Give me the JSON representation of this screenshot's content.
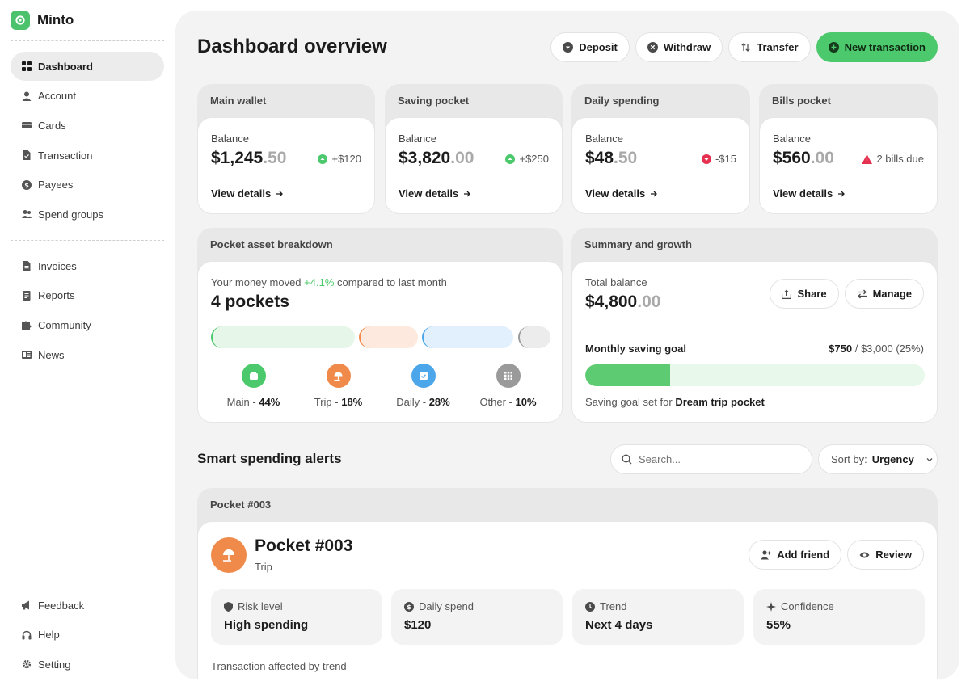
{
  "app": {
    "name": "Minto"
  },
  "sidebar": {
    "items": [
      {
        "label": "Dashboard",
        "icon": "grid-icon",
        "active": true
      },
      {
        "label": "Account",
        "icon": "user-icon"
      },
      {
        "label": "Cards",
        "icon": "card-icon"
      },
      {
        "label": "Transaction",
        "icon": "file-icon"
      },
      {
        "label": "Payees",
        "icon": "dollar-icon"
      },
      {
        "label": "Spend groups",
        "icon": "users-icon"
      }
    ],
    "items2": [
      {
        "label": "Invoices",
        "icon": "invoice-icon"
      },
      {
        "label": "Reports",
        "icon": "report-icon"
      },
      {
        "label": "Community",
        "icon": "puzzle-icon"
      },
      {
        "label": "News",
        "icon": "news-icon"
      }
    ],
    "bottom": [
      {
        "label": "Feedback",
        "icon": "megaphone-icon"
      },
      {
        "label": "Help",
        "icon": "headphones-icon"
      },
      {
        "label": "Setting",
        "icon": "gear-icon"
      }
    ]
  },
  "header": {
    "title": "Dashboard overview",
    "deposit": "Deposit",
    "withdraw": "Withdraw",
    "transfer": "Transfer",
    "new_transaction": "New transaction"
  },
  "wallets": [
    {
      "name": "Main wallet",
      "label": "Balance",
      "int": "$1,245",
      "dec": ".50",
      "change": "+$120",
      "kind": "up",
      "link": "View details"
    },
    {
      "name": "Saving pocket",
      "label": "Balance",
      "int": "$3,820",
      "dec": ".00",
      "change": "+$250",
      "kind": "up",
      "link": "View details"
    },
    {
      "name": "Daily spending",
      "label": "Balance",
      "int": "$48",
      "dec": ".50",
      "change": "-$15",
      "kind": "down",
      "link": "View details"
    },
    {
      "name": "Bills pocket",
      "label": "Balance",
      "int": "$560",
      "dec": ".00",
      "change": "2 bills due",
      "kind": "warn",
      "link": "View details"
    }
  ],
  "breakdown": {
    "title": "Pocket asset breakdown",
    "moved_pre": "Your money moved",
    "moved_pct": "+4.1%",
    "moved_post": "compared to last month",
    "count": "4 pockets",
    "pockets": [
      {
        "name": "Main",
        "pct": "44%",
        "share": 44,
        "color": "#4cc96c",
        "light": "#e6f7e9",
        "icon": "wallet-icon"
      },
      {
        "name": "Trip",
        "pct": "18%",
        "share": 18,
        "color": "#f08a4b",
        "light": "#fde9dd",
        "icon": "beach-icon"
      },
      {
        "name": "Daily",
        "pct": "28%",
        "share": 28,
        "color": "#4ba6ea",
        "light": "#e1f0fc",
        "icon": "calendar-icon"
      },
      {
        "name": "Other",
        "pct": "10%",
        "share": 10,
        "color": "#9a9a9a",
        "light": "#ececec",
        "icon": "apps-icon"
      }
    ]
  },
  "summary": {
    "title": "Summary and growth",
    "total_label": "Total balance",
    "total_int": "$4,800",
    "total_dec": ".00",
    "share": "Share",
    "manage": "Manage",
    "goal_label": "Monthly saving goal",
    "goal_current": "$750",
    "goal_rest": "/ $3,000 (25%)",
    "goal_progress": 0.25,
    "goal_note_pre": "Saving goal set for",
    "goal_note_bold": "Dream trip pocket"
  },
  "alerts": {
    "title": "Smart spending alerts",
    "search_placeholder": "Search...",
    "sort_label": "Sort by:",
    "sort_value": "Urgency",
    "card_head": "Pocket #003",
    "pocket_title": "Pocket #003",
    "pocket_sub": "Trip",
    "add_friend": "Add friend",
    "review": "Review",
    "stats": [
      {
        "label": "Risk level",
        "value": "High spending",
        "icon": "shield-icon"
      },
      {
        "label": "Daily spend",
        "value": "$120",
        "icon": "dollar-icon"
      },
      {
        "label": "Trend",
        "value": "Next 4 days",
        "icon": "clock-icon"
      },
      {
        "label": "Confidence",
        "value": "55%",
        "icon": "sparkle-icon"
      }
    ],
    "footer": "Transaction affected by trend"
  }
}
